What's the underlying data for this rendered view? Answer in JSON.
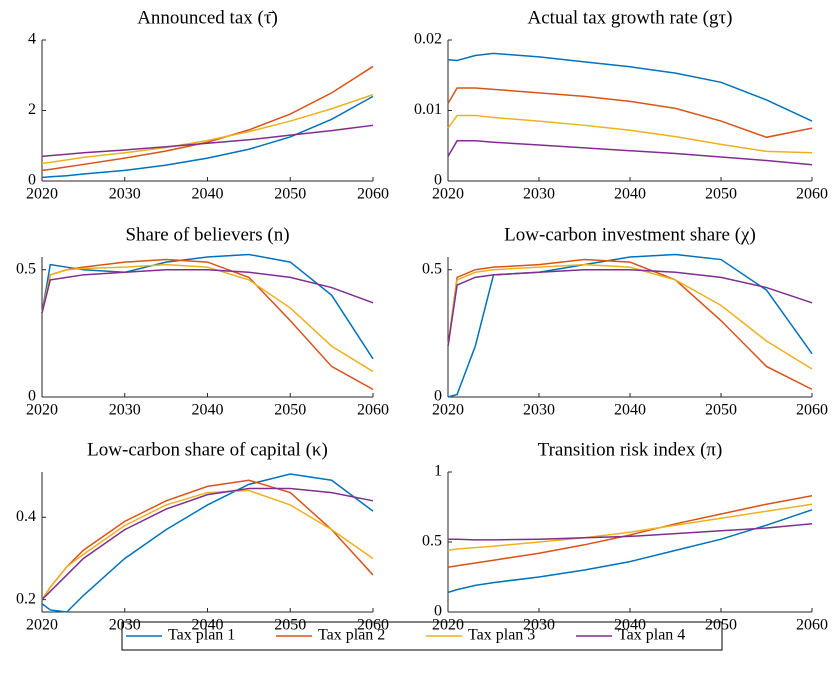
{
  "chart_data": [
    {
      "type": "line",
      "title": "Announced tax (τ̄)",
      "x": [
        2020,
        2021,
        2023,
        2025,
        2030,
        2035,
        2040,
        2045,
        2050,
        2055,
        2060
      ],
      "xlim": [
        2020,
        2060
      ],
      "xticks": [
        2020,
        2030,
        2040,
        2050,
        2060
      ],
      "ylim": [
        0,
        4
      ],
      "yticks": [
        0,
        2,
        4
      ],
      "series": [
        {
          "name": "Tax plan 1",
          "color": "#0072BD",
          "values": [
            0.1,
            0.12,
            0.15,
            0.2,
            0.3,
            0.45,
            0.65,
            0.9,
            1.25,
            1.75,
            2.4
          ]
        },
        {
          "name": "Tax plan 2",
          "color": "#D95319",
          "values": [
            0.3,
            0.33,
            0.4,
            0.47,
            0.65,
            0.85,
            1.1,
            1.45,
            1.9,
            2.5,
            3.25
          ]
        },
        {
          "name": "Tax plan 3",
          "color": "#EDB120",
          "values": [
            0.5,
            0.53,
            0.6,
            0.67,
            0.8,
            0.95,
            1.15,
            1.4,
            1.7,
            2.05,
            2.45
          ]
        },
        {
          "name": "Tax plan 4",
          "color": "#7E2F8E",
          "values": [
            0.7,
            0.72,
            0.76,
            0.8,
            0.88,
            0.97,
            1.07,
            1.17,
            1.3,
            1.43,
            1.58
          ]
        }
      ]
    },
    {
      "type": "line",
      "title": "Actual tax growth rate (gτ)",
      "x": [
        2020,
        2021,
        2023,
        2025,
        2030,
        2035,
        2040,
        2045,
        2050,
        2055,
        2060
      ],
      "xlim": [
        2020,
        2060
      ],
      "xticks": [
        2020,
        2030,
        2040,
        2050,
        2060
      ],
      "ylim": [
        0,
        0.02
      ],
      "yticks": [
        0,
        0.01,
        0.02
      ],
      "series": [
        {
          "color": "#0072BD",
          "values": [
            0.0172,
            0.0171,
            0.0178,
            0.0181,
            0.0176,
            0.0169,
            0.0162,
            0.0153,
            0.014,
            0.0115,
            0.0085
          ]
        },
        {
          "color": "#D95319",
          "values": [
            0.011,
            0.0132,
            0.0132,
            0.013,
            0.0125,
            0.012,
            0.0113,
            0.0103,
            0.0085,
            0.0062,
            0.0075
          ]
        },
        {
          "color": "#EDB120",
          "values": [
            0.0075,
            0.0093,
            0.0093,
            0.009,
            0.0085,
            0.0079,
            0.0072,
            0.0063,
            0.0052,
            0.0042,
            0.004
          ]
        },
        {
          "color": "#7E2F8E",
          "values": [
            0.0035,
            0.0057,
            0.0057,
            0.0055,
            0.0051,
            0.0047,
            0.0043,
            0.0039,
            0.0034,
            0.0029,
            0.0023
          ]
        }
      ]
    },
    {
      "type": "line",
      "title": "Share of believers (n)",
      "x": [
        2020,
        2021,
        2023,
        2025,
        2030,
        2035,
        2040,
        2045,
        2050,
        2055,
        2060
      ],
      "xlim": [
        2020,
        2060
      ],
      "xticks": [
        2020,
        2030,
        2040,
        2050,
        2060
      ],
      "ylim": [
        0,
        0.55
      ],
      "yticks": [
        0,
        0.5
      ],
      "series": [
        {
          "color": "#0072BD",
          "values": [
            0.33,
            0.52,
            0.51,
            0.5,
            0.49,
            0.53,
            0.55,
            0.56,
            0.53,
            0.4,
            0.15
          ]
        },
        {
          "color": "#D95319",
          "values": [
            0.33,
            0.48,
            0.5,
            0.51,
            0.53,
            0.54,
            0.53,
            0.47,
            0.3,
            0.12,
            0.03
          ]
        },
        {
          "color": "#EDB120",
          "values": [
            0.33,
            0.48,
            0.5,
            0.505,
            0.51,
            0.52,
            0.51,
            0.46,
            0.35,
            0.2,
            0.1
          ]
        },
        {
          "color": "#7E2F8E",
          "values": [
            0.33,
            0.46,
            0.47,
            0.48,
            0.49,
            0.5,
            0.5,
            0.49,
            0.47,
            0.43,
            0.37
          ]
        }
      ]
    },
    {
      "type": "line",
      "title": "Low-carbon investment share (χ)",
      "x": [
        2020,
        2021,
        2023,
        2025,
        2030,
        2035,
        2040,
        2045,
        2050,
        2055,
        2060
      ],
      "xlim": [
        2020,
        2060
      ],
      "xticks": [
        2020,
        2030,
        2040,
        2050,
        2060
      ],
      "ylim": [
        0,
        0.55
      ],
      "yticks": [
        0,
        0.5
      ],
      "series": [
        {
          "color": "#0072BD",
          "values": [
            0,
            0.01,
            0.2,
            0.48,
            0.49,
            0.52,
            0.55,
            0.56,
            0.54,
            0.42,
            0.17
          ]
        },
        {
          "color": "#D95319",
          "values": [
            0.2,
            0.47,
            0.5,
            0.51,
            0.52,
            0.54,
            0.53,
            0.46,
            0.3,
            0.12,
            0.03
          ]
        },
        {
          "color": "#EDB120",
          "values": [
            0.2,
            0.46,
            0.49,
            0.5,
            0.51,
            0.52,
            0.51,
            0.46,
            0.36,
            0.22,
            0.11
          ]
        },
        {
          "color": "#7E2F8E",
          "values": [
            0.2,
            0.44,
            0.47,
            0.48,
            0.49,
            0.5,
            0.5,
            0.49,
            0.47,
            0.43,
            0.37
          ]
        }
      ]
    },
    {
      "type": "line",
      "title": "Low-carbon share of capital (κ)",
      "x": [
        2020,
        2021,
        2023,
        2025,
        2030,
        2035,
        2040,
        2045,
        2050,
        2055,
        2060
      ],
      "xlim": [
        2020,
        2060
      ],
      "xticks": [
        2020,
        2030,
        2040,
        2050,
        2060
      ],
      "ylim": [
        0.17,
        0.51
      ],
      "yticks": [
        0.2,
        0.4
      ],
      "series": [
        {
          "color": "#0072BD",
          "values": [
            0.19,
            0.175,
            0.17,
            0.21,
            0.3,
            0.37,
            0.43,
            0.48,
            0.505,
            0.49,
            0.415
          ]
        },
        {
          "color": "#D95319",
          "values": [
            0.2,
            0.23,
            0.28,
            0.32,
            0.39,
            0.44,
            0.475,
            0.49,
            0.46,
            0.37,
            0.26
          ]
        },
        {
          "color": "#EDB120",
          "values": [
            0.2,
            0.23,
            0.28,
            0.31,
            0.38,
            0.43,
            0.46,
            0.465,
            0.43,
            0.37,
            0.3
          ]
        },
        {
          "color": "#7E2F8E",
          "values": [
            0.2,
            0.22,
            0.26,
            0.3,
            0.37,
            0.42,
            0.455,
            0.47,
            0.47,
            0.46,
            0.44
          ]
        }
      ]
    },
    {
      "type": "line",
      "title": "Transition risk index (π)",
      "x": [
        2020,
        2021,
        2023,
        2025,
        2030,
        2035,
        2040,
        2045,
        2050,
        2055,
        2060
      ],
      "xlim": [
        2020,
        2060
      ],
      "xticks": [
        2020,
        2030,
        2040,
        2050,
        2060
      ],
      "ylim": [
        0,
        1
      ],
      "yticks": [
        0,
        0.5,
        1
      ],
      "series": [
        {
          "color": "#0072BD",
          "values": [
            0.14,
            0.16,
            0.19,
            0.21,
            0.25,
            0.3,
            0.36,
            0.44,
            0.52,
            0.62,
            0.73
          ]
        },
        {
          "color": "#D95319",
          "values": [
            0.32,
            0.33,
            0.35,
            0.37,
            0.42,
            0.48,
            0.55,
            0.63,
            0.7,
            0.77,
            0.83
          ]
        },
        {
          "color": "#EDB120",
          "values": [
            0.44,
            0.45,
            0.46,
            0.47,
            0.5,
            0.53,
            0.57,
            0.62,
            0.67,
            0.72,
            0.77
          ]
        },
        {
          "color": "#7E2F8E",
          "values": [
            0.52,
            0.52,
            0.515,
            0.515,
            0.52,
            0.53,
            0.54,
            0.56,
            0.58,
            0.6,
            0.63
          ]
        }
      ]
    }
  ]
}
